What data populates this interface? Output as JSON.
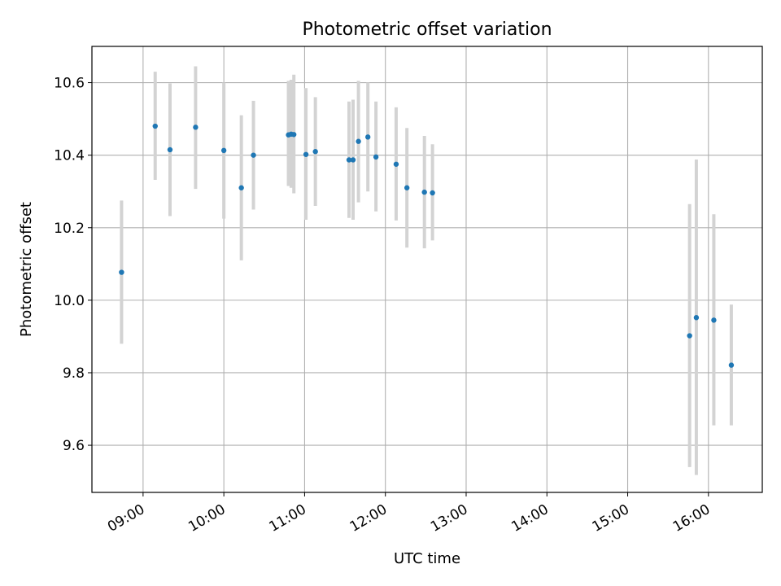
{
  "chart_data": {
    "type": "scatter",
    "title": "Photometric offset variation",
    "xlabel": "UTC time",
    "ylabel": "Photometric offset",
    "x_unit": "hours (UTC)",
    "xlim": [
      "08:22",
      "16:40"
    ],
    "ylim": [
      9.47,
      10.7
    ],
    "grid": true,
    "x_ticks": [
      "09:00",
      "10:00",
      "11:00",
      "12:00",
      "13:00",
      "14:00",
      "15:00",
      "16:00"
    ],
    "y_ticks": [
      "9.6",
      "9.8",
      "10.0",
      "10.2",
      "10.4",
      "10.6"
    ],
    "point_color": "#1f77b4",
    "errorbar_color": "#d3d3d3",
    "points": [
      {
        "x": "08:44",
        "y": 10.077,
        "y_low": 9.88,
        "y_high": 10.275
      },
      {
        "x": "09:09",
        "y": 10.48,
        "y_low": 10.332,
        "y_high": 10.63
      },
      {
        "x": "09:20",
        "y": 10.415,
        "y_low": 10.232,
        "y_high": 10.598
      },
      {
        "x": "09:39",
        "y": 10.477,
        "y_low": 10.307,
        "y_high": 10.645
      },
      {
        "x": "10:00",
        "y": 10.413,
        "y_low": 10.225,
        "y_high": 10.6
      },
      {
        "x": "10:13",
        "y": 10.31,
        "y_low": 10.11,
        "y_high": 10.51
      },
      {
        "x": "10:22",
        "y": 10.4,
        "y_low": 10.25,
        "y_high": 10.55
      },
      {
        "x": "10:48",
        "y": 10.456,
        "y_low": 10.315,
        "y_high": 10.605
      },
      {
        "x": "10:50",
        "y": 10.458,
        "y_low": 10.31,
        "y_high": 10.608
      },
      {
        "x": "10:52",
        "y": 10.457,
        "y_low": 10.295,
        "y_high": 10.622
      },
      {
        "x": "11:01",
        "y": 10.402,
        "y_low": 10.222,
        "y_high": 10.585
      },
      {
        "x": "11:08",
        "y": 10.41,
        "y_low": 10.26,
        "y_high": 10.56
      },
      {
        "x": "11:33",
        "y": 10.387,
        "y_low": 10.227,
        "y_high": 10.548
      },
      {
        "x": "11:36",
        "y": 10.387,
        "y_low": 10.222,
        "y_high": 10.553
      },
      {
        "x": "11:40",
        "y": 10.438,
        "y_low": 10.27,
        "y_high": 10.605
      },
      {
        "x": "11:47",
        "y": 10.45,
        "y_low": 10.3,
        "y_high": 10.6
      },
      {
        "x": "11:53",
        "y": 10.395,
        "y_low": 10.245,
        "y_high": 10.548
      },
      {
        "x": "12:08",
        "y": 10.375,
        "y_low": 10.22,
        "y_high": 10.532
      },
      {
        "x": "12:16",
        "y": 10.31,
        "y_low": 10.145,
        "y_high": 10.475
      },
      {
        "x": "12:29",
        "y": 10.298,
        "y_low": 10.143,
        "y_high": 10.453
      },
      {
        "x": "12:35",
        "y": 10.296,
        "y_low": 10.165,
        "y_high": 10.43
      },
      {
        "x": "15:46",
        "y": 9.902,
        "y_low": 9.54,
        "y_high": 10.265
      },
      {
        "x": "15:51",
        "y": 9.952,
        "y_low": 9.518,
        "y_high": 10.388
      },
      {
        "x": "16:04",
        "y": 9.945,
        "y_low": 9.655,
        "y_high": 10.237
      },
      {
        "x": "16:17",
        "y": 9.821,
        "y_low": 9.655,
        "y_high": 9.988
      }
    ]
  }
}
